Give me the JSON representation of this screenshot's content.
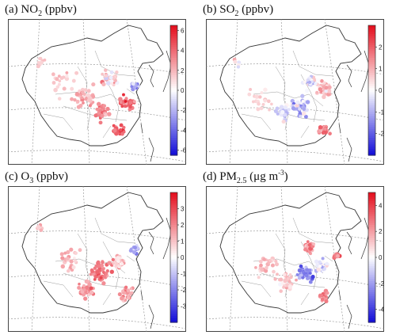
{
  "panels": [
    {
      "title": {
        "prefix": "(a) NO",
        "sub": "2",
        "mid": "",
        "sup": "",
        "unit": "  (ppbv)"
      },
      "colorbar": {
        "min": -6.5,
        "max": 6.5,
        "ticks": [
          6,
          4,
          2,
          0,
          -2,
          -4,
          -6
        ]
      }
    },
    {
      "title": {
        "prefix": "(b) SO",
        "sub": "2",
        "mid": "",
        "sup": "",
        "unit": "  (ppbv)"
      },
      "colorbar": {
        "min": -3,
        "max": 3,
        "ticks": [
          2,
          1,
          0,
          -1,
          -2
        ]
      }
    },
    {
      "title": {
        "prefix": "(c) O",
        "sub": "3",
        "mid": "",
        "sup": "",
        "unit": "  (ppbv)"
      },
      "colorbar": {
        "min": -4,
        "max": 4,
        "ticks": [
          3,
          2,
          1,
          0,
          -1,
          -2,
          -3
        ]
      }
    },
    {
      "title": {
        "prefix": "(d) PM",
        "sub": "2.5",
        "mid": "  (μg m",
        "sup": "-3",
        "unit": ")"
      },
      "colorbar": {
        "min": -5,
        "max": 5,
        "ticks": [
          4,
          2,
          0,
          -2,
          -4
        ]
      }
    }
  ],
  "colors": {
    "positive": "#e4101f",
    "negative": "#1510d8",
    "neutral": "#ffffff",
    "land_border": "#333333",
    "graticule": "#888888"
  }
}
